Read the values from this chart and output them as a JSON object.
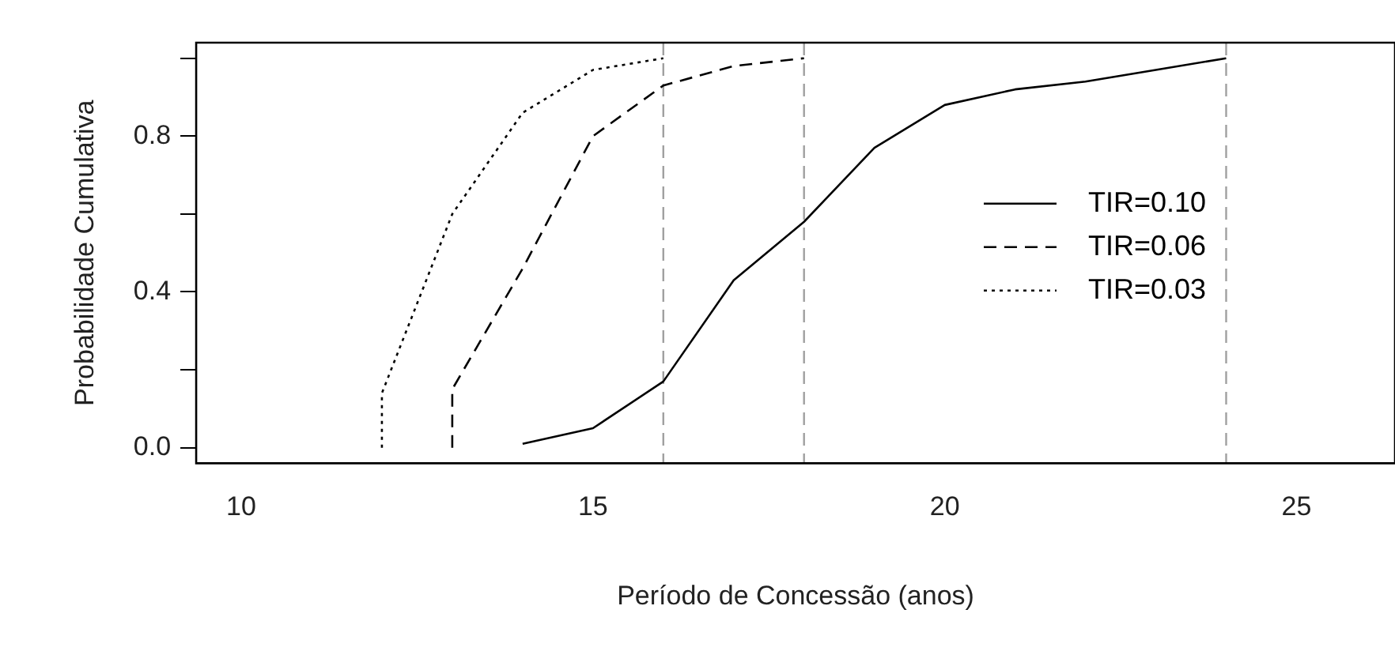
{
  "chart_data": {
    "type": "line",
    "xlabel": "Período de Concessão (anos)",
    "ylabel": "Probabilidade Cumulativa",
    "xlim": [
      9.36,
      26.4
    ],
    "xticks": [
      10,
      15,
      20,
      25
    ],
    "ylim": [
      -0.04,
      1.04
    ],
    "yticks": [
      {
        "value": 0,
        "label": "0.0"
      },
      {
        "value": 0.2,
        "label": null
      },
      {
        "value": 0.4,
        "label": "0.4"
      },
      {
        "value": 0.6,
        "label": null
      },
      {
        "value": 0.8,
        "label": "0.8"
      },
      {
        "value": 1,
        "label": null
      }
    ],
    "series": [
      {
        "name": "TIR=0.10",
        "color": "#000000",
        "line_style": "solid",
        "x": [
          14,
          15,
          16,
          17,
          18,
          19,
          20,
          21,
          22,
          23,
          24
        ],
        "values": [
          0.01,
          0.05,
          0.17,
          0.43,
          0.58,
          0.77,
          0.88,
          0.92,
          0.94,
          0.97,
          1.0
        ]
      },
      {
        "name": "TIR=0.06",
        "color": "#000000",
        "line_style": "dashed",
        "x": [
          13,
          13,
          14,
          15,
          16,
          17,
          18
        ],
        "values": [
          0,
          0.15,
          0.46,
          0.8,
          0.93,
          0.98,
          1.0
        ]
      },
      {
        "name": "TIR=0.03",
        "color": "#000000",
        "line_style": "dotted",
        "x": [
          12,
          12,
          13,
          14,
          15,
          16
        ],
        "values": [
          0,
          0.14,
          0.6,
          0.86,
          0.97,
          1.0
        ]
      }
    ],
    "ref_lines": [
      {
        "axis": "x",
        "value": 16,
        "color": "#a0a0a0",
        "line_style": "dashed"
      },
      {
        "axis": "x",
        "value": 18,
        "color": "#a0a0a0",
        "line_style": "dashed"
      },
      {
        "axis": "x",
        "value": 24,
        "color": "#a0a0a0",
        "line_style": "dashed"
      }
    ],
    "legend": "right",
    "marker": "none",
    "grid": false
  }
}
